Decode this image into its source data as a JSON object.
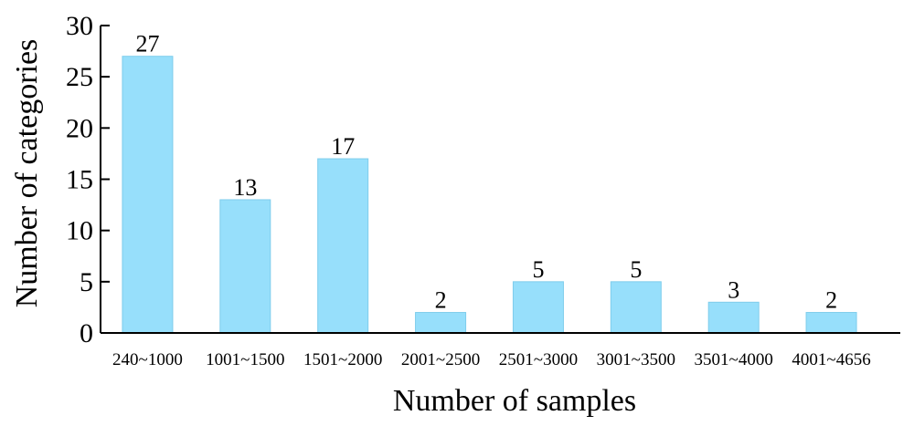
{
  "chart_data": {
    "type": "bar",
    "title": "",
    "xlabel": "Number of samples",
    "ylabel": "Number of categories",
    "categories": [
      "240~1000",
      "1001~1500",
      "1501~2000",
      "2001~2500",
      "2501~3000",
      "3001~3500",
      "3501~4000",
      "4001~4656"
    ],
    "values": [
      27,
      13,
      17,
      2,
      5,
      5,
      3,
      2
    ],
    "data_labels": [
      "27",
      "13",
      "17",
      "2",
      "5",
      "5",
      "3",
      "2"
    ],
    "ylim": [
      0,
      30
    ],
    "yticks": [
      "0",
      "5",
      "10",
      "15",
      "20",
      "25",
      "30"
    ],
    "grid": false,
    "legend": "none",
    "colors": {
      "bar": "#97dffb",
      "bar_edge": "#7fcdec",
      "axis": "#000000"
    }
  }
}
